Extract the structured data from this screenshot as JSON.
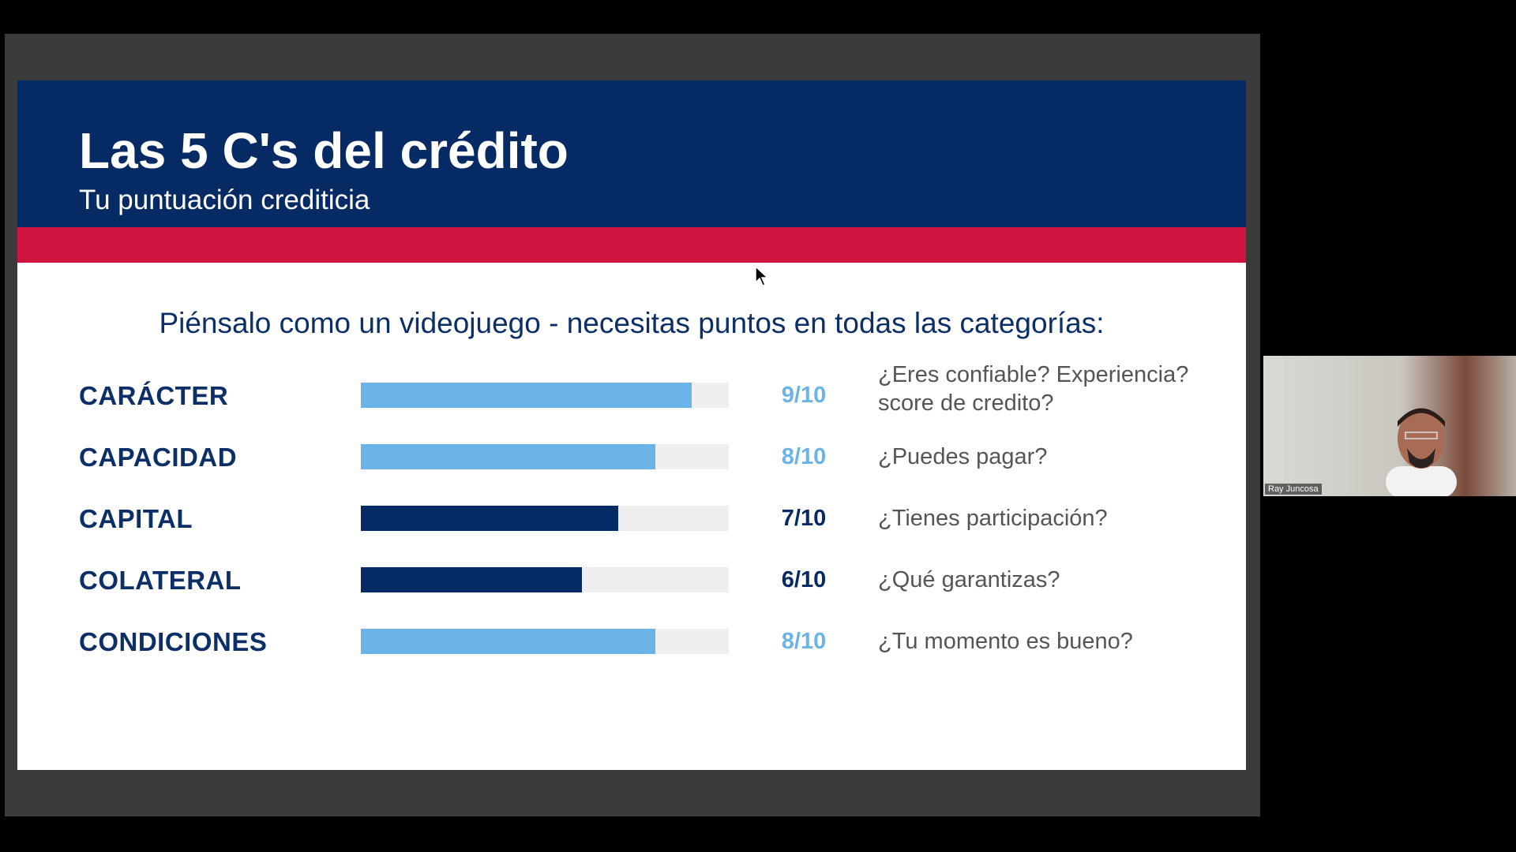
{
  "slide": {
    "title": "Las 5 C's del crédito",
    "subtitle": "Tu puntuación crediticia",
    "prompt": "Piénsalo como un videojuego - necesitas puntos en todas las categorías:",
    "scale_max": 10,
    "rows": [
      {
        "label": "CARÁCTER",
        "score": 9,
        "score_label": "9/10",
        "color": "#6cb4e8",
        "question": "¿Eres confiable? Experiencia? score de credito?"
      },
      {
        "label": "CAPACIDAD",
        "score": 8,
        "score_label": "8/10",
        "color": "#6cb4e8",
        "question": "¿Puedes pagar?"
      },
      {
        "label": "CAPITAL",
        "score": 7,
        "score_label": "7/10",
        "color": "#062a63",
        "question": "¿Tienes participación?"
      },
      {
        "label": "COLATERAL",
        "score": 6,
        "score_label": "6/10",
        "color": "#062a63",
        "question": "¿Qué garantizas?"
      },
      {
        "label": "CONDICIONES",
        "score": 8,
        "score_label": "8/10",
        "color": "#6cb4e8",
        "question": "¿Tu momento es bueno?"
      }
    ]
  },
  "participant": {
    "name": "Ray Juncosa"
  }
}
